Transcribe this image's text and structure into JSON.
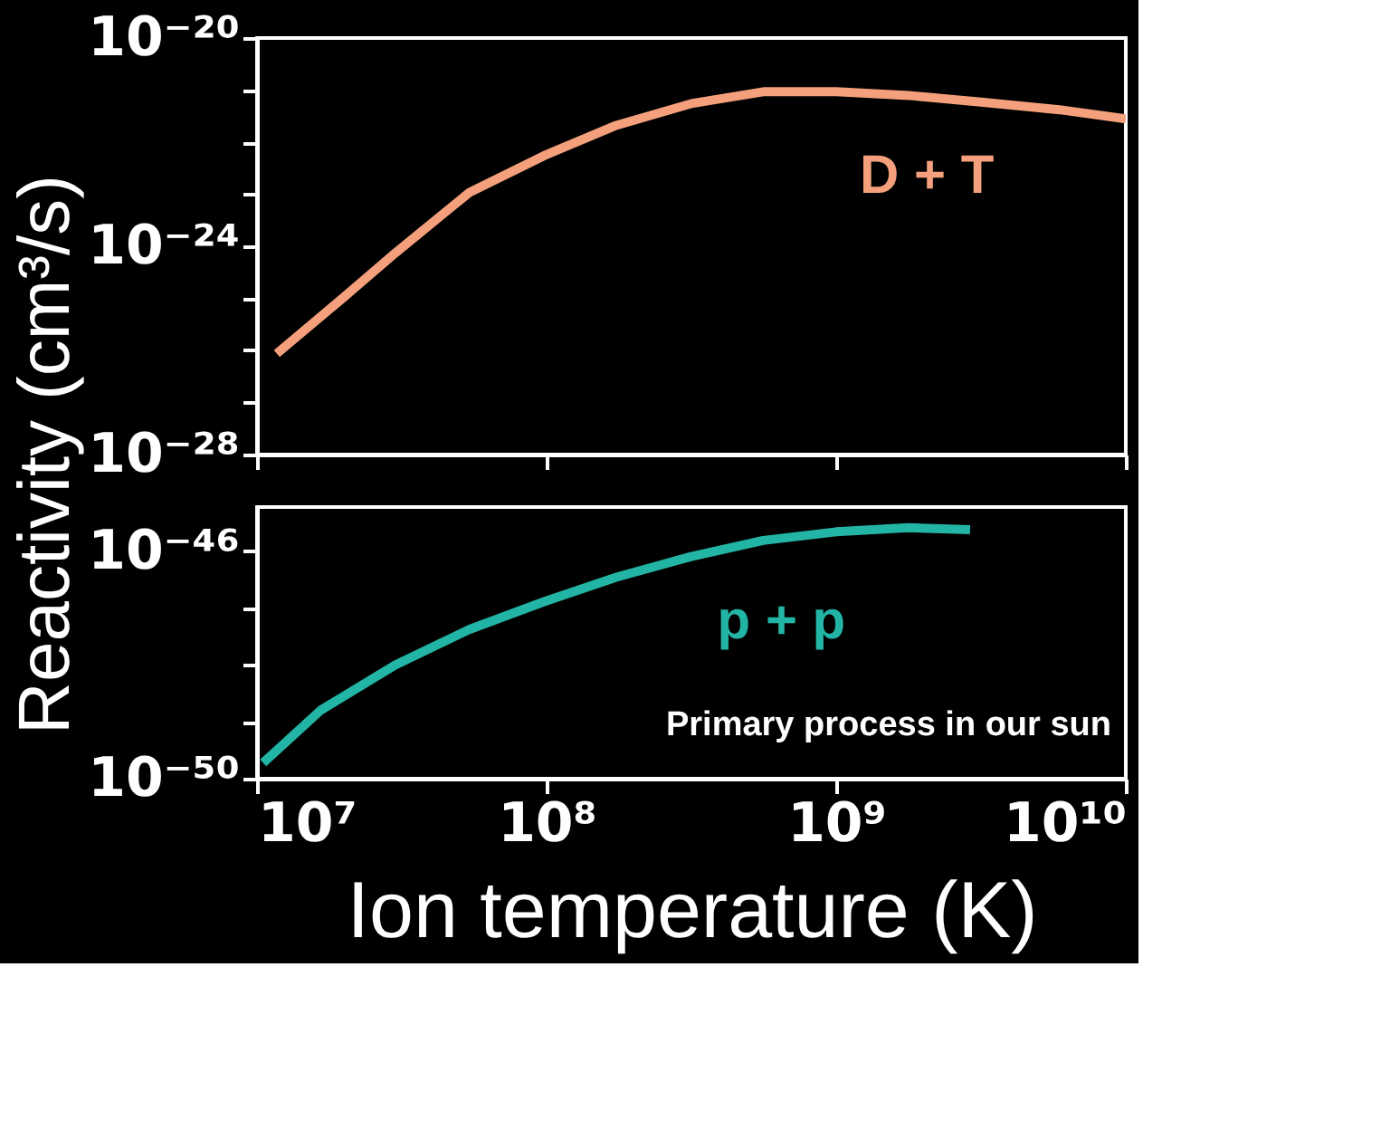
{
  "chart_data": [
    {
      "type": "line",
      "ylabel": "Reactivity (cm³/s)",
      "xlim": [
        10000000.0,
        10000000000.0
      ],
      "ylim": [
        1e-28,
        1e-20
      ],
      "log": "xy",
      "tick_labels": "y",
      "marker": "none",
      "line_style": "solid",
      "xticks": [
        {
          "value": 10000000.0,
          "label": null
        },
        {
          "value": 100000000.0,
          "label": null
        },
        {
          "value": 1000000000.0,
          "label": null
        },
        {
          "value": 10000000000.0,
          "label": null
        }
      ],
      "yticks": [
        {
          "value": 1e-28,
          "label": "10⁻²⁸"
        },
        {
          "value": 1e-27,
          "label": null
        },
        {
          "value": 1e-26,
          "label": null
        },
        {
          "value": 1e-25,
          "label": null
        },
        {
          "value": 1e-24,
          "label": "10⁻²⁴"
        },
        {
          "value": 1e-23,
          "label": null
        },
        {
          "value": 1e-22,
          "label": null
        },
        {
          "value": 1e-21,
          "label": null
        },
        {
          "value": 1e-20,
          "label": "10⁻²⁰"
        }
      ],
      "series": [
        {
          "name": "D + T",
          "color": "#f4a07c",
          "x": [
            11700000.0,
            20000000.0,
            30000000.0,
            54000000.0,
            98000000.0,
            174000000.0,
            316000000.0,
            560000000.0,
            1000000000.0,
            1780000000.0,
            3160000000.0,
            5900000000.0,
            10000000000.0
          ],
          "values": [
            8.7e-27,
            1.07e-25,
            7.4e-25,
            1.07e-23,
            5.5e-23,
            2.1e-22,
            5.5e-22,
            9.3e-22,
            9.3e-22,
            7.9e-22,
            5.9e-22,
            4.2e-22,
            2.8e-22
          ]
        }
      ]
    },
    {
      "type": "line",
      "xlabel": "Ion temperature (K)",
      "xlim": [
        10000000.0,
        10000000000.0
      ],
      "ylim": [
        1e-50,
        6e-46
      ],
      "log": "xy",
      "marker": "none",
      "line_style": "solid",
      "xticks": [
        {
          "value": 10000000.0,
          "label": "10⁷"
        },
        {
          "value": 100000000.0,
          "label": "10⁸"
        },
        {
          "value": 1000000000.0,
          "label": "10⁹"
        },
        {
          "value": 10000000000.0,
          "label": "10¹⁰"
        }
      ],
      "yticks": [
        {
          "value": 1e-50,
          "label": "10⁻⁵⁰"
        },
        {
          "value": 1e-49,
          "label": null
        },
        {
          "value": 1e-48,
          "label": null
        },
        {
          "value": 1e-47,
          "label": null
        },
        {
          "value": 1e-46,
          "label": "10⁻⁴⁶"
        }
      ],
      "annotations": [
        "Primary process in our sun"
      ],
      "series": [
        {
          "name": "p + p",
          "color": "#22b5a5",
          "x": [
            10500000.0,
            16600000.0,
            30000000.0,
            54000000.0,
            98000000.0,
            174000000.0,
            316000000.0,
            560000000.0,
            1000000000.0,
            1780000000.0,
            2900000000.0
          ],
          "values": [
            1.9e-50,
            1.6e-49,
            1e-48,
            4.2e-48,
            1.3e-47,
            3.5e-47,
            8.1e-47,
            1.55e-46,
            2.2e-46,
            2.6e-46,
            2.4e-46
          ]
        }
      ]
    }
  ]
}
